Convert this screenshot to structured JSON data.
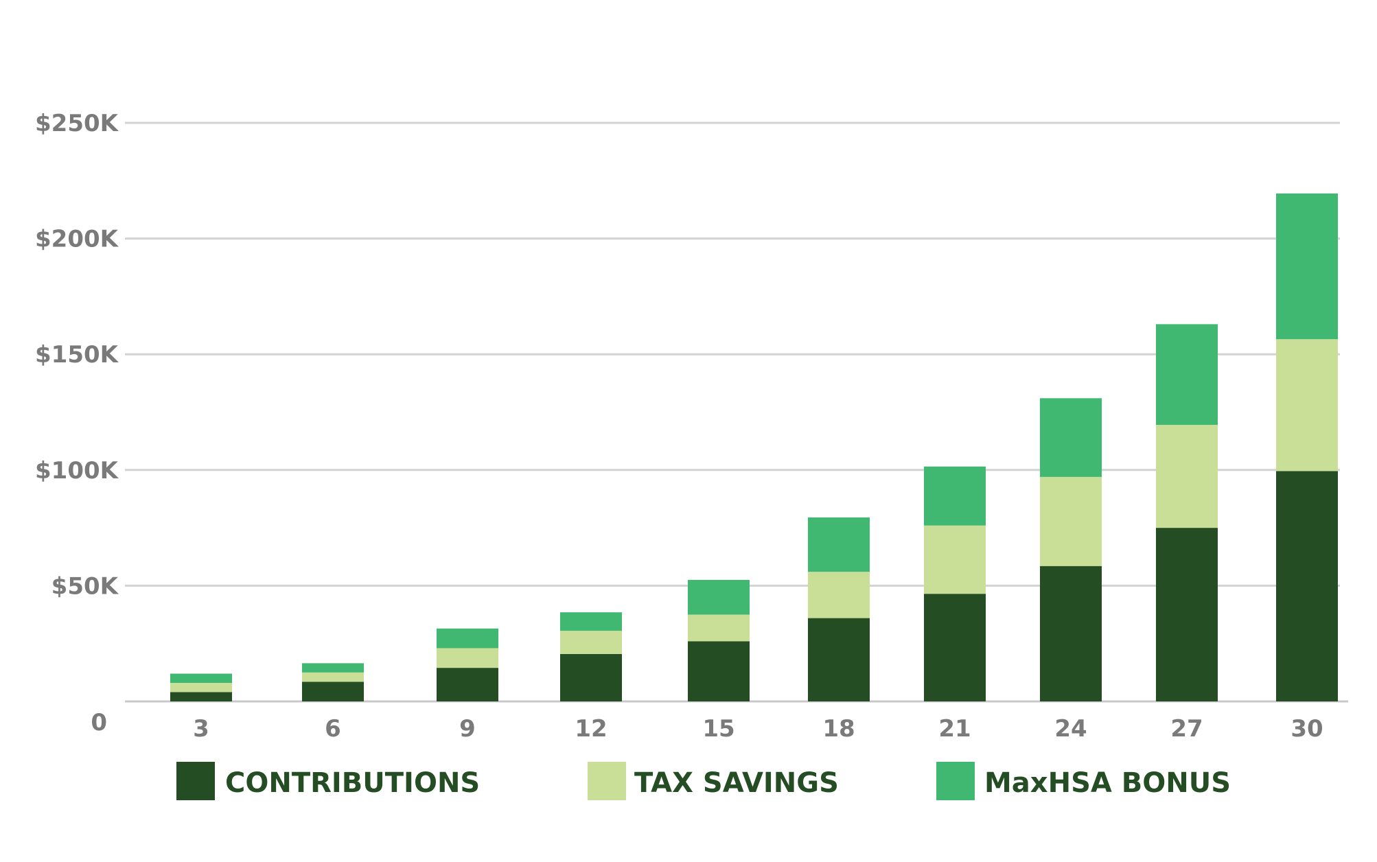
{
  "chart_data": {
    "type": "bar",
    "stacked": true,
    "title": "",
    "xlabel": "",
    "ylabel": "",
    "categories": [
      "3",
      "6",
      "9",
      "12",
      "15",
      "18",
      "21",
      "24",
      "27",
      "30"
    ],
    "series": [
      {
        "name": "CONTRIBUTIONS",
        "color": "#244d24",
        "values": [
          4000,
          8500,
          14500,
          20500,
          26000,
          36000,
          46500,
          58500,
          75000,
          99500
        ]
      },
      {
        "name": "TAX SAVINGS",
        "color": "#c9df97",
        "values": [
          4000,
          4000,
          8500,
          10000,
          11500,
          20000,
          29500,
          38500,
          44500,
          57000
        ]
      },
      {
        "name": "MaxHSA BONUS",
        "color": "#40b872",
        "values": [
          4000,
          4000,
          8500,
          8000,
          15000,
          23500,
          25500,
          34000,
          43500,
          63000
        ]
      }
    ],
    "ylim": [
      0,
      250000
    ],
    "yticks": [
      0,
      50000,
      100000,
      150000,
      200000,
      250000
    ],
    "ytick_labels": [
      "0",
      "$50K",
      "$100K",
      "$150K",
      "$200K",
      "$250K"
    ],
    "grid": true,
    "legend_position": "bottom"
  }
}
